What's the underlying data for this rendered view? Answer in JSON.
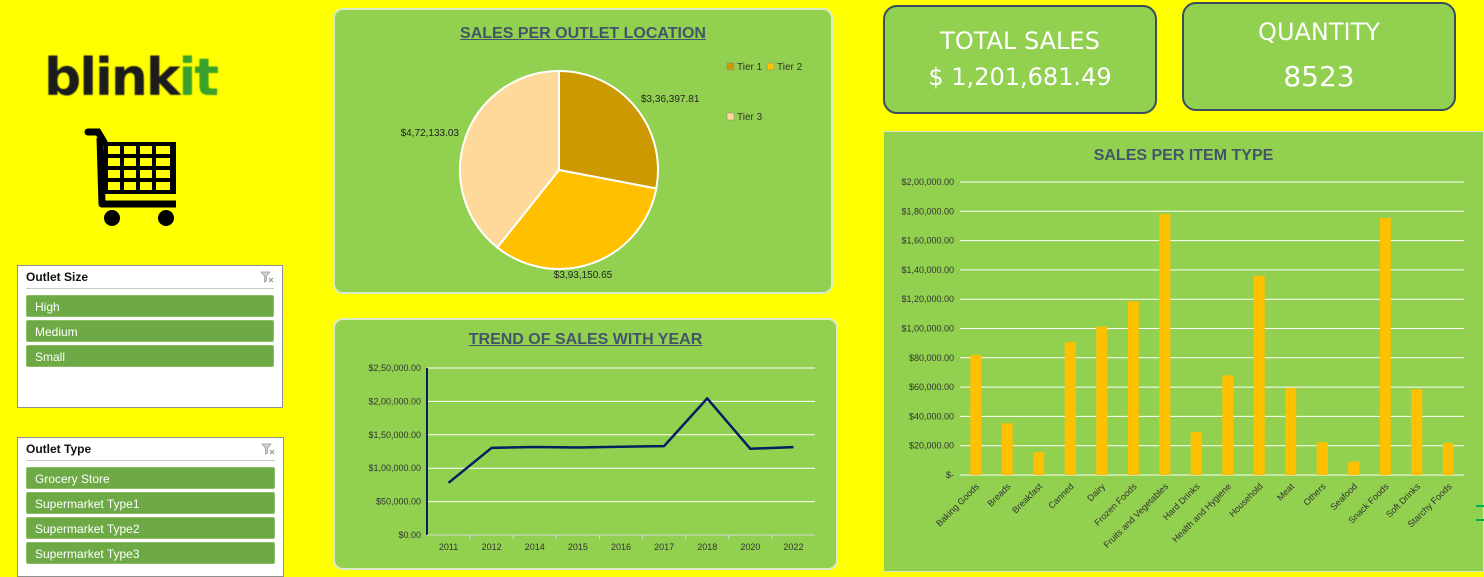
{
  "logo": {
    "part1": "blink",
    "part2": "it"
  },
  "icons": {
    "cart": "shopping-cart-icon",
    "filter": "clear-filter-icon"
  },
  "colors": {
    "background": "#ffff00",
    "panel": "#92d050",
    "slicer_item": "#6daa45",
    "title_text": "#44546a",
    "line": "#002060"
  },
  "slicers": [
    {
      "title": "Outlet Size",
      "items": [
        "High",
        "Medium",
        "Small"
      ]
    },
    {
      "title": "Outlet Type",
      "items": [
        "Grocery Store",
        "Supermarket Type1",
        "Supermarket Type2",
        "Supermarket Type3"
      ]
    }
  ],
  "kpis": {
    "total_sales": {
      "label": "TOTAL SALES",
      "value": "$ 1,201,681.49"
    },
    "quantity": {
      "label": "QUANTITY",
      "value": "8523"
    }
  },
  "chart_data": [
    {
      "type": "pie",
      "title": "SALES PER OUTLET LOCATION",
      "categories": [
        "Tier 1",
        "Tier 2",
        "Tier 3"
      ],
      "values": [
        336397.81,
        393150.65,
        472133.03
      ],
      "data_labels": [
        "$3,36,397.81",
        "$3,93,150.65",
        "$4,72,133.03"
      ],
      "colors": [
        "#cc9900",
        "#ffc000",
        "#ffd99a"
      ],
      "legend": "top-right"
    },
    {
      "type": "line",
      "title": "TREND OF SALES WITH YEAR",
      "x": [
        "2011",
        "2012",
        "2014",
        "2015",
        "2016",
        "2017",
        "2018",
        "2020",
        "2022"
      ],
      "series": [
        {
          "values": [
            78131.56,
            130476.86,
            131809.02,
            130942.78,
            132113.37,
            133103.91,
            204522.26,
            129103.96,
            131477.77
          ]
        }
      ],
      "ylim": [
        0,
        250000
      ],
      "yticks": [
        "$0.00",
        "$50,000.00",
        "$1,00,000.00",
        "$1,50,000.00",
        "$2,00,000.00",
        "$2,50,000.00"
      ],
      "grid": true
    },
    {
      "type": "bar",
      "title": "SALES PER ITEM TYPE",
      "categories": [
        "Baking Goods",
        "Breads",
        "Breakfast",
        "Canned",
        "Dairy",
        "Frozen Foods",
        "Fruits and Vegetables",
        "Hard Drinks",
        "Health and Hygiene",
        "Household",
        "Meat",
        "Others",
        "Seafood",
        "Snack Foods",
        "Soft Drinks",
        "Starchy Foods"
      ],
      "values": [
        81894.74,
        35379.12,
        15596.7,
        90706.73,
        101276.46,
        118558.88,
        178124.08,
        29334.68,
        68025.84,
        135976.53,
        59449.86,
        22451.89,
        9077.87,
        175433.92,
        58514.17,
        21880.03
      ],
      "ylim": [
        0,
        200000
      ],
      "yticks": [
        "$-",
        "$20,000.00",
        "$40,000.00",
        "$60,000.00",
        "$80,000.00",
        "$1,00,000.00",
        "$1,20,000.00",
        "$1,40,000.00",
        "$1,60,000.00",
        "$1,80,000.00",
        "$2,00,000.00"
      ],
      "color": "#ffc000",
      "grid": true
    }
  ]
}
